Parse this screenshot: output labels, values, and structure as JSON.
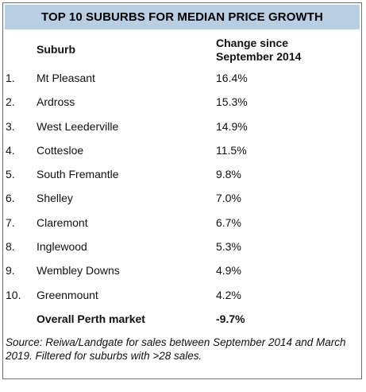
{
  "title": "TOP 10 SUBURBS FOR MEDIAN PRICE GROWTH",
  "header": {
    "suburb": "Suburb",
    "change_line1": "Change since",
    "change_line2": "September 2014"
  },
  "rows": [
    {
      "rank": "1.",
      "suburb": "Mt Pleasant",
      "change": "16.4%"
    },
    {
      "rank": "2.",
      "suburb": "Ardross",
      "change": "15.3%"
    },
    {
      "rank": "3.",
      "suburb": "West Leederville",
      "change": "14.9%"
    },
    {
      "rank": "4.",
      "suburb": "Cottesloe",
      "change": "11.5%"
    },
    {
      "rank": "5.",
      "suburb": "South Fremantle",
      "change": "9.8%"
    },
    {
      "rank": "6.",
      "suburb": "Shelley",
      "change": "7.0%"
    },
    {
      "rank": "7.",
      "suburb": "Claremont",
      "change": "6.7%"
    },
    {
      "rank": "8.",
      "suburb": "Inglewood",
      "change": "5.3%"
    },
    {
      "rank": "9.",
      "suburb": "Wembley Downs",
      "change": "4.9%"
    },
    {
      "rank": "10.",
      "suburb": "Greenmount",
      "change": "4.2%"
    }
  ],
  "overall": {
    "label": "Overall Perth market",
    "change": "-9.7%"
  },
  "source_line1": "Source: Reiwa/Landgate for sales between September 2014 and March",
  "source_line2": "2019. Filtered for suburbs with >28 sales."
}
